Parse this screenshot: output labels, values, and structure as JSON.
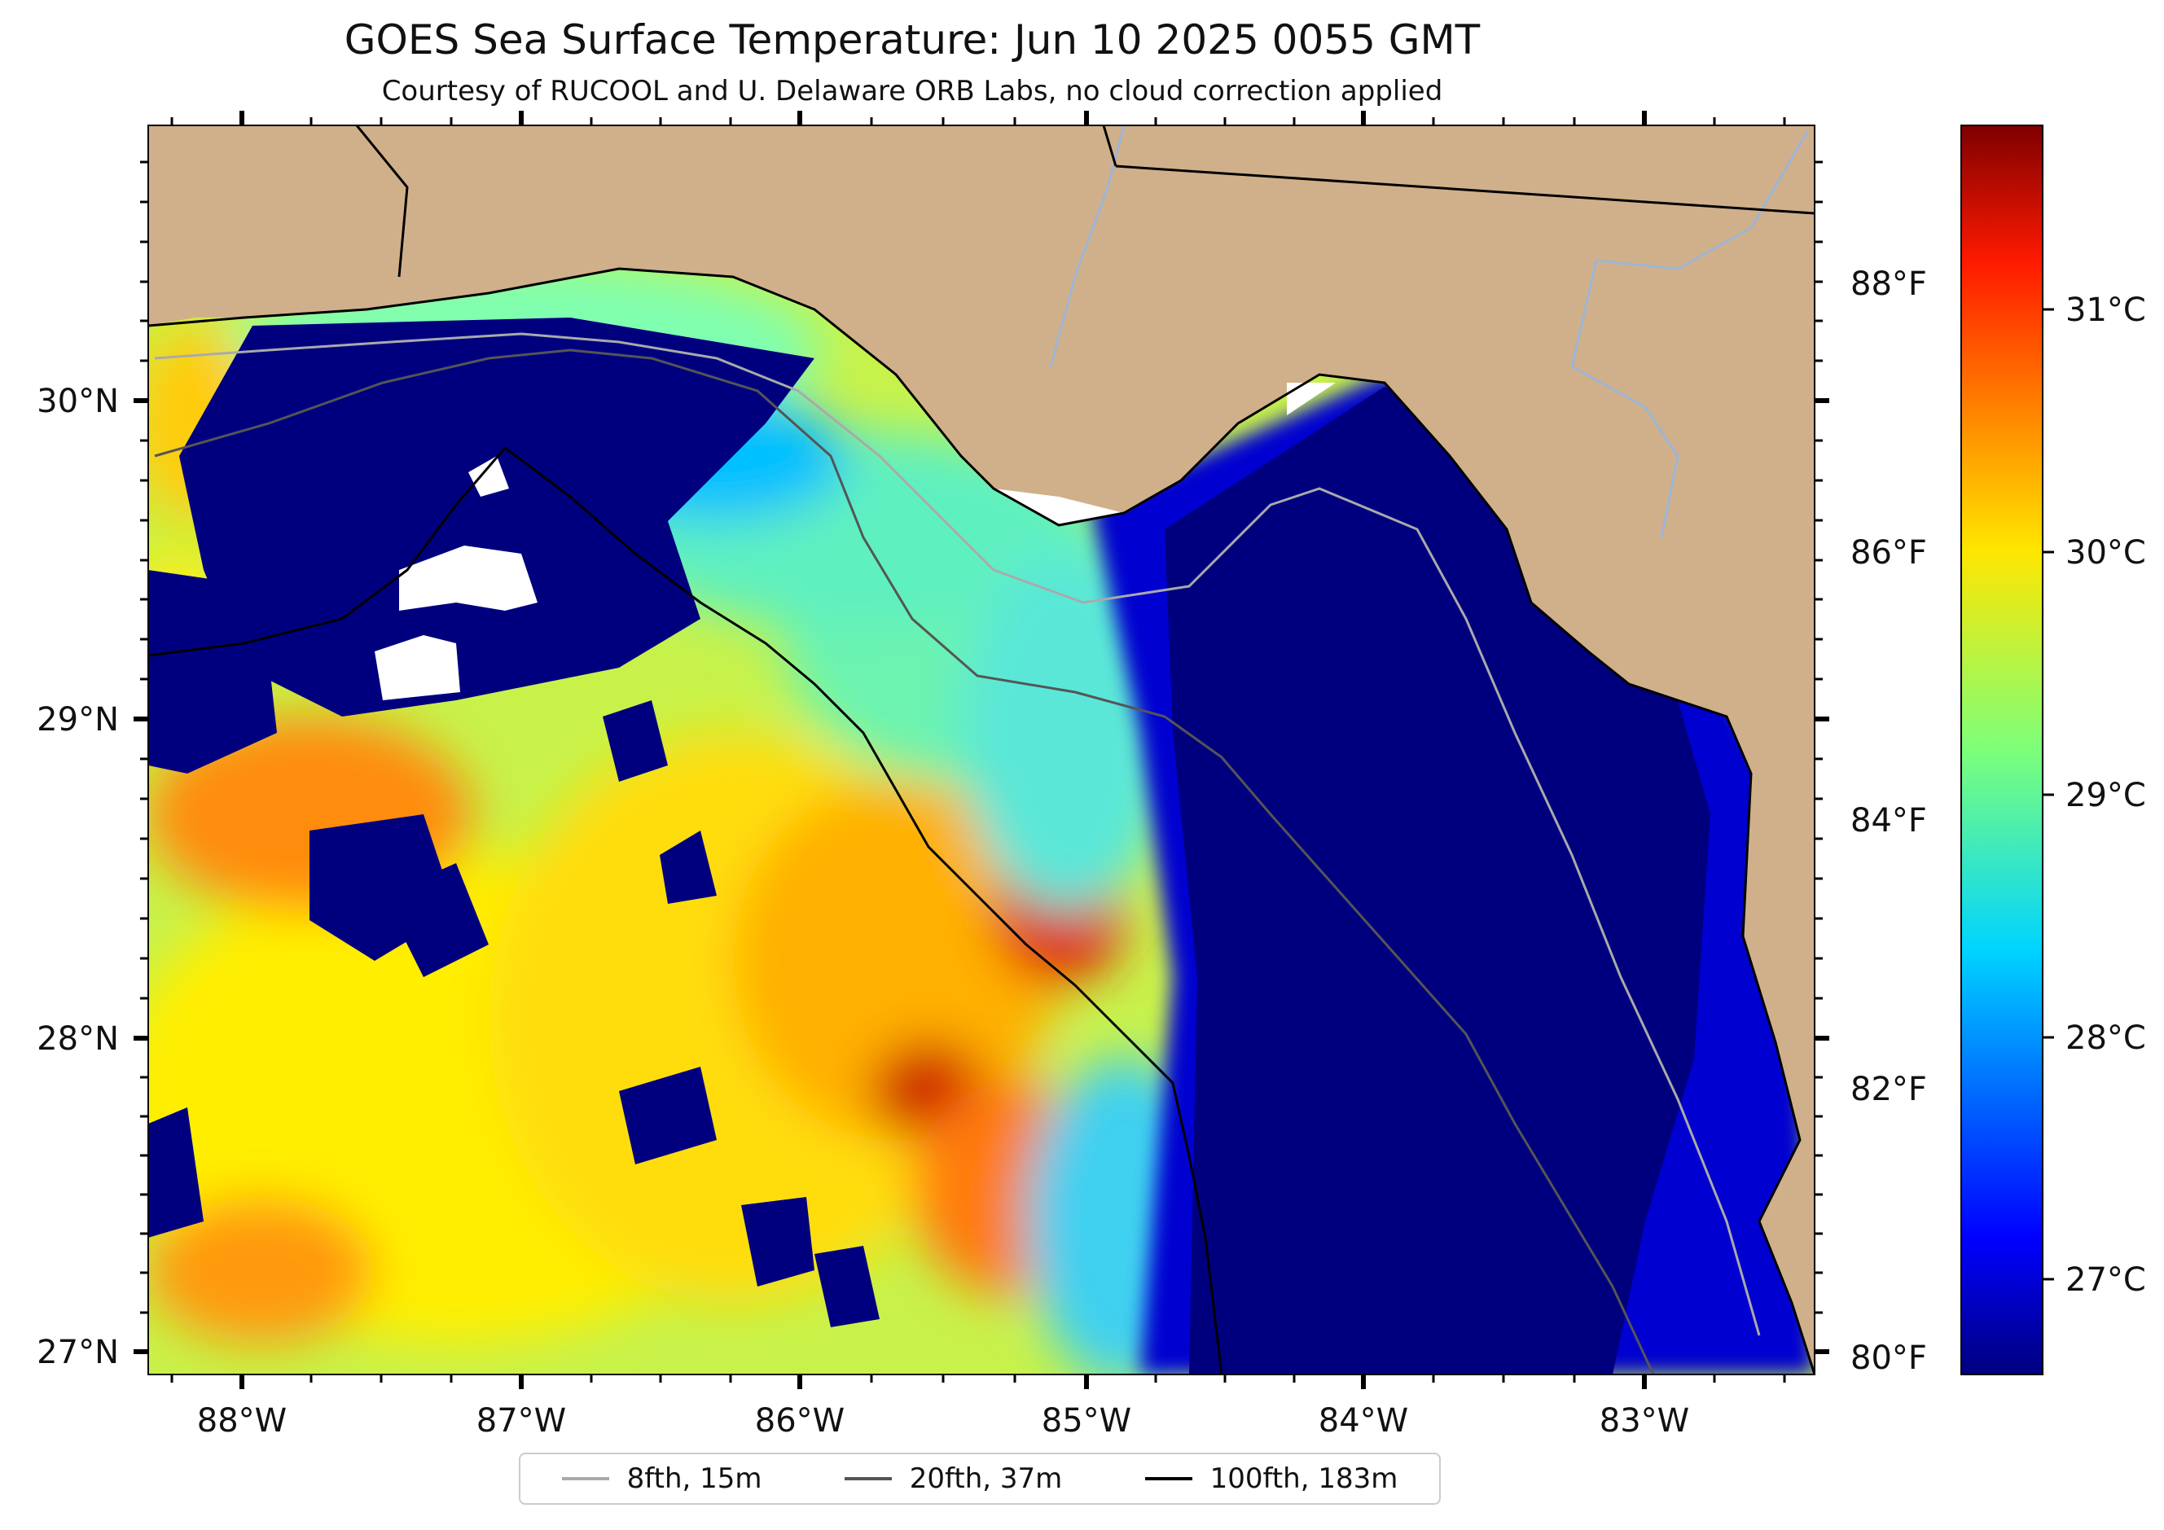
{
  "title": "GOES Sea Surface Temperature: Jun 10 2025 0055 GMT",
  "subtitle": "Courtesy of RUCOOL and U. Delaware ORB Labs, no cloud correction applied",
  "map": {
    "lon_labels": [
      "88°W",
      "87°W",
      "86°W",
      "85°W",
      "84°W",
      "83°W"
    ],
    "lat_labels": [
      "30°N",
      "29°N",
      "28°N",
      "27°N"
    ],
    "fahrenheit_labels": [
      "88°F",
      "86°F",
      "84°F",
      "82°F",
      "80°F"
    ],
    "colors": {
      "land": "#d0b08a",
      "cold_water": "#00007f",
      "cloud": "#ffffff",
      "river": "#9db5d6"
    }
  },
  "colorbar": {
    "labels": [
      "31°C",
      "30°C",
      "29°C",
      "28°C",
      "27°C"
    ],
    "colormap": "jet"
  },
  "legend": [
    {
      "label": "8fth, 15m",
      "color": "#aaaaaa"
    },
    {
      "label": "20fth, 37m",
      "color": "#555555"
    },
    {
      "label": "100fth, 183m",
      "color": "#000000"
    }
  ]
}
